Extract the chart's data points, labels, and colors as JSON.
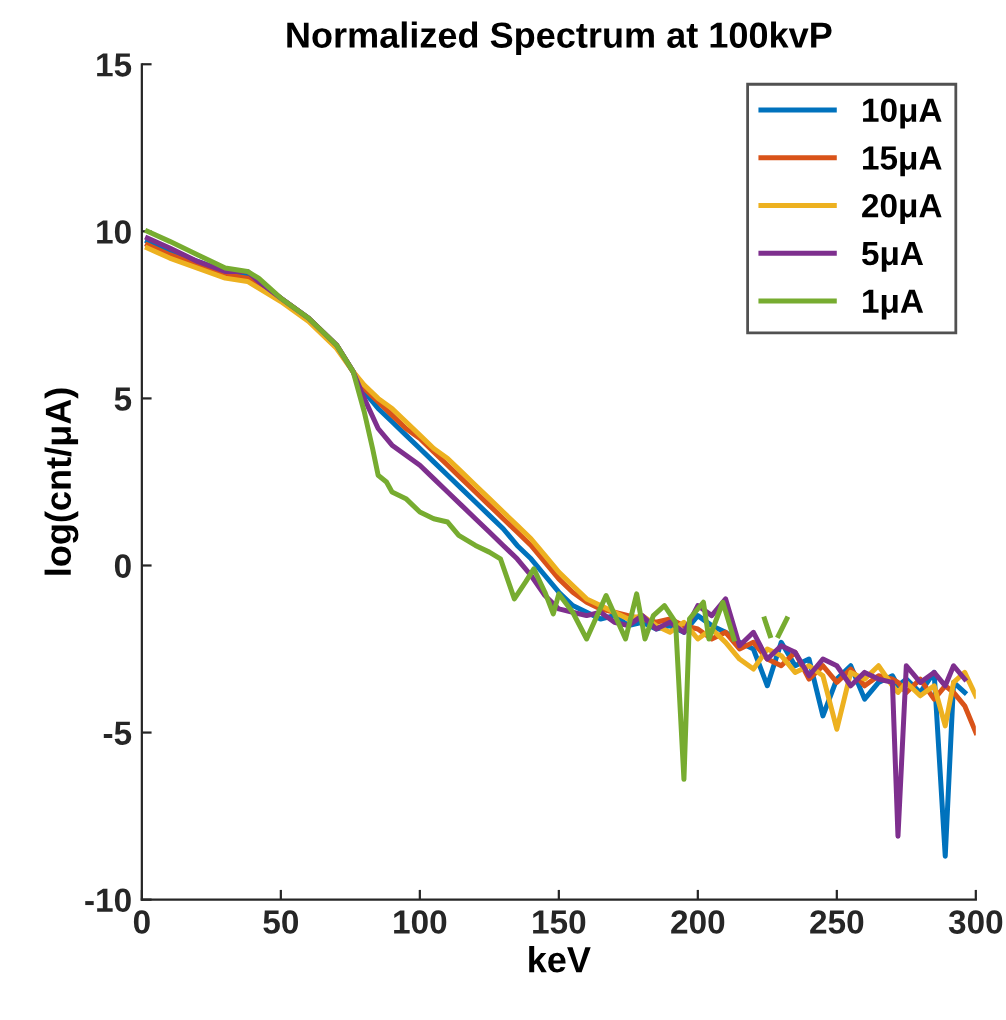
{
  "chart_data": {
    "type": "line",
    "title": "Normalized Spectrum at 100kvP",
    "xlabel": "keV",
    "ylabel": "log(cnt/μA)",
    "x": [
      2,
      10,
      20,
      30,
      38,
      42,
      50,
      60,
      70,
      76,
      80,
      85,
      90,
      95,
      100,
      105,
      110,
      115,
      120,
      125,
      130,
      135,
      140,
      145,
      150,
      155,
      160,
      165,
      170,
      175,
      180,
      185,
      190,
      195,
      200,
      205,
      210,
      215,
      220,
      225,
      230,
      235,
      240,
      245,
      250,
      255,
      260,
      265,
      270,
      272,
      275,
      280,
      285,
      289,
      292,
      296,
      300
    ],
    "series": [
      {
        "name": "10μA",
        "color": "#0072bd",
        "values": [
          9.7,
          9.4,
          9.1,
          8.8,
          8.7,
          8.5,
          8.0,
          7.4,
          6.6,
          5.8,
          5.2,
          4.7,
          4.3,
          3.9,
          3.5,
          3.1,
          2.7,
          2.3,
          1.9,
          1.5,
          1.1,
          0.6,
          0.2,
          -0.3,
          -0.8,
          -1.2,
          -1.4,
          -1.6,
          -1.5,
          -1.8,
          -1.7,
          -1.9,
          -1.8,
          -2.0,
          -1.5,
          -1.8,
          -2.0,
          -2.3,
          -2.5,
          -3.6,
          -2.3,
          -3.0,
          -2.8,
          -4.5,
          -3.4,
          -3.0,
          -4.0,
          -3.5,
          -3.3,
          -3.6,
          -3.4,
          -3.8,
          -3.2,
          -8.7,
          -3.5,
          -3.8,
          null
        ]
      },
      {
        "name": "15μA",
        "color": "#d95319",
        "values": [
          9.6,
          9.3,
          9.0,
          8.7,
          8.6,
          8.4,
          8.0,
          7.4,
          6.6,
          5.8,
          5.3,
          4.9,
          4.5,
          4.1,
          3.8,
          3.4,
          3.0,
          2.6,
          2.2,
          1.8,
          1.4,
          1.0,
          0.6,
          0.1,
          -0.4,
          -0.8,
          -1.1,
          -1.3,
          -1.4,
          -1.5,
          -1.6,
          -1.7,
          -1.6,
          -1.8,
          -1.9,
          -2.2,
          -2.0,
          -2.5,
          -2.3,
          -2.8,
          -3.0,
          -2.6,
          -3.4,
          -3.0,
          -3.5,
          -3.1,
          -3.6,
          -3.3,
          -3.4,
          -3.5,
          -3.8,
          -3.4,
          -4.0,
          -3.6,
          -3.8,
          -4.2,
          -5.0
        ]
      },
      {
        "name": "20μA",
        "color": "#edb120",
        "values": [
          9.5,
          9.2,
          8.9,
          8.6,
          8.5,
          8.3,
          7.9,
          7.3,
          6.5,
          5.8,
          5.4,
          5.0,
          4.7,
          4.3,
          3.9,
          3.5,
          3.2,
          2.8,
          2.4,
          2.0,
          1.6,
          1.2,
          0.8,
          0.3,
          -0.2,
          -0.6,
          -1.0,
          -1.2,
          -1.4,
          -1.6,
          -1.5,
          -1.8,
          -2.0,
          -1.7,
          -2.2,
          -1.9,
          -2.3,
          -2.8,
          -3.1,
          -2.5,
          -2.7,
          -3.2,
          -3.0,
          -3.3,
          -4.9,
          -3.2,
          -3.4,
          -3.0,
          -3.6,
          -3.8,
          -3.5,
          -3.9,
          -3.6,
          -4.8,
          -3.5,
          -3.2,
          -3.9
        ]
      },
      {
        "name": "5μA",
        "color": "#7e2f8e",
        "values": [
          9.8,
          9.5,
          9.1,
          8.8,
          8.8,
          8.5,
          8.0,
          7.4,
          6.6,
          5.8,
          5.0,
          4.1,
          3.6,
          3.3,
          3.0,
          2.6,
          2.2,
          1.8,
          1.4,
          1.0,
          0.6,
          0.2,
          -0.3,
          -0.9,
          -1.3,
          -1.4,
          -1.5,
          -1.4,
          -1.7,
          -1.8,
          -1.5,
          -1.9,
          -1.7,
          -2.0,
          -1.2,
          -1.5,
          -1.0,
          -2.4,
          -2.0,
          -2.8,
          -2.4,
          -2.6,
          -3.3,
          -2.8,
          -3.0,
          -3.6,
          -3.2,
          -3.4,
          -3.5,
          -8.1,
          -3.0,
          -3.5,
          -3.2,
          -3.6,
          -3.0,
          -3.4,
          null
        ]
      },
      {
        "name": "1μA",
        "color": "#77ac30",
        "x": [
          2,
          10,
          20,
          30,
          38,
          42,
          50,
          60,
          70,
          76,
          80,
          83,
          85,
          88,
          90,
          95,
          100,
          105,
          110,
          114,
          120,
          125,
          129,
          134,
          138,
          141,
          145,
          148,
          150,
          155,
          160,
          167,
          174,
          178,
          181,
          184,
          188,
          192,
          195,
          197,
          202,
          204,
          209,
          213,
          218,
          224,
          226,
          228,
          229,
          232
        ],
        "values": [
          10.0,
          9.7,
          9.3,
          8.9,
          8.8,
          8.6,
          8.0,
          7.4,
          6.6,
          5.8,
          4.6,
          3.5,
          2.7,
          2.5,
          2.2,
          2.0,
          1.6,
          1.4,
          1.3,
          0.9,
          0.6,
          0.4,
          0.2,
          -1.0,
          -0.5,
          -0.1,
          -0.8,
          -1.45,
          -0.85,
          -1.4,
          -2.2,
          -0.9,
          -2.2,
          -0.85,
          -2.2,
          -1.5,
          -1.2,
          -1.7,
          -6.4,
          -1.6,
          -1.1,
          -2.2,
          -1.1,
          -2.2,
          null,
          -1.6,
          -2.1,
          null,
          -2.1,
          -1.6
        ]
      }
    ],
    "xlim": [
      0,
      300
    ],
    "xticks": [
      0,
      50,
      100,
      150,
      200,
      250,
      300
    ],
    "ylim": [
      -10,
      15
    ],
    "yticks": [
      -10,
      -5,
      0,
      5,
      10,
      15
    ],
    "legend": "top right",
    "grid": false,
    "marker": "none",
    "line_style": "solid"
  }
}
